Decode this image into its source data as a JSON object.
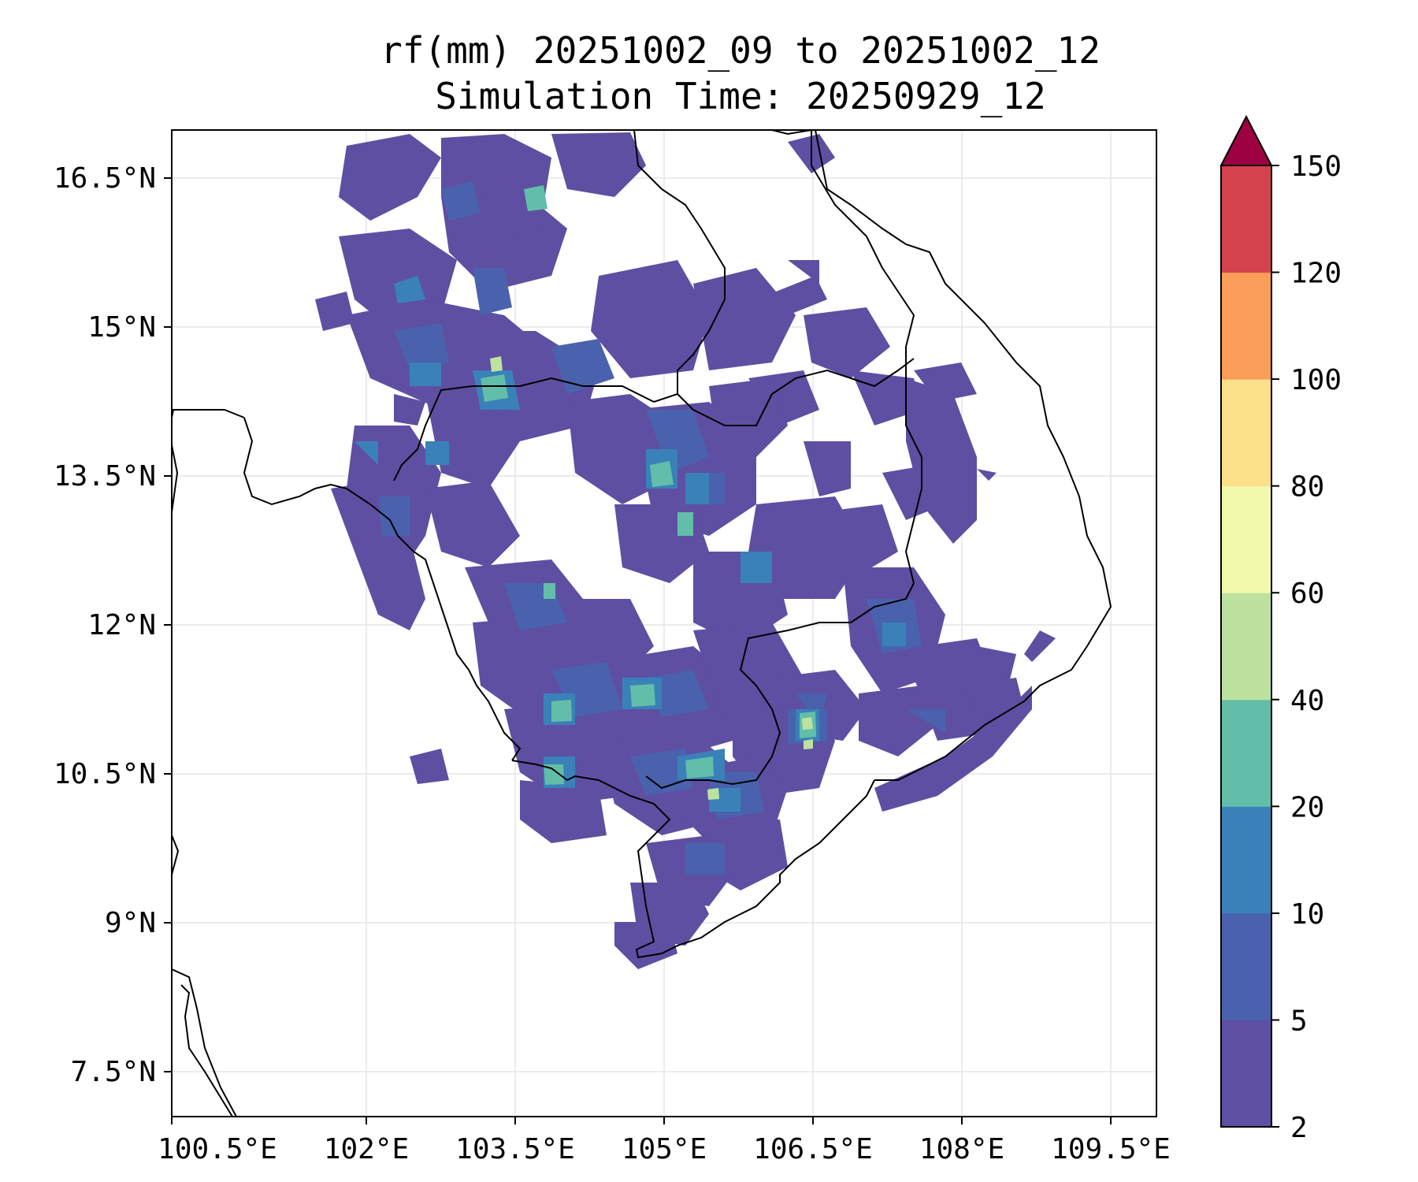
{
  "title": {
    "line1": "rf(mm) 20251002_09 to 20251002_12",
    "line2": "Simulation Time: 20250929_12"
  },
  "map": {
    "x_ticks": [
      "100.5°E",
      "102°E",
      "103.5°E",
      "105°E",
      "106.5°E",
      "108°E",
      "109.5°E"
    ],
    "y_ticks": [
      "16.5°N",
      "15°N",
      "13.5°N",
      "12°N",
      "10.5°N",
      "9°N",
      "7.5°N"
    ],
    "lon_range": [
      100.5,
      110.4
    ],
    "lat_range": [
      7.0,
      16.9
    ]
  },
  "colorbar": {
    "levels": [
      2,
      5,
      10,
      20,
      40,
      60,
      80,
      100,
      120,
      150
    ],
    "labels": [
      "2",
      "5",
      "10",
      "20",
      "40",
      "60",
      "80",
      "100",
      "120",
      "150"
    ],
    "colors": [
      "#5e4fa2",
      "#4a62ad",
      "#3a81b9",
      "#62bea9",
      "#bde2a0",
      "#f2f9ad",
      "#fde08a",
      "#f99d59",
      "#d4424d",
      "#9e0142"
    ],
    "extend": "max"
  },
  "colors": {
    "c2": "#5e4fa2",
    "c5": "#4a62ad",
    "c10": "#3a81b9",
    "c20": "#62bea9",
    "c40": "#bde2a0"
  }
}
